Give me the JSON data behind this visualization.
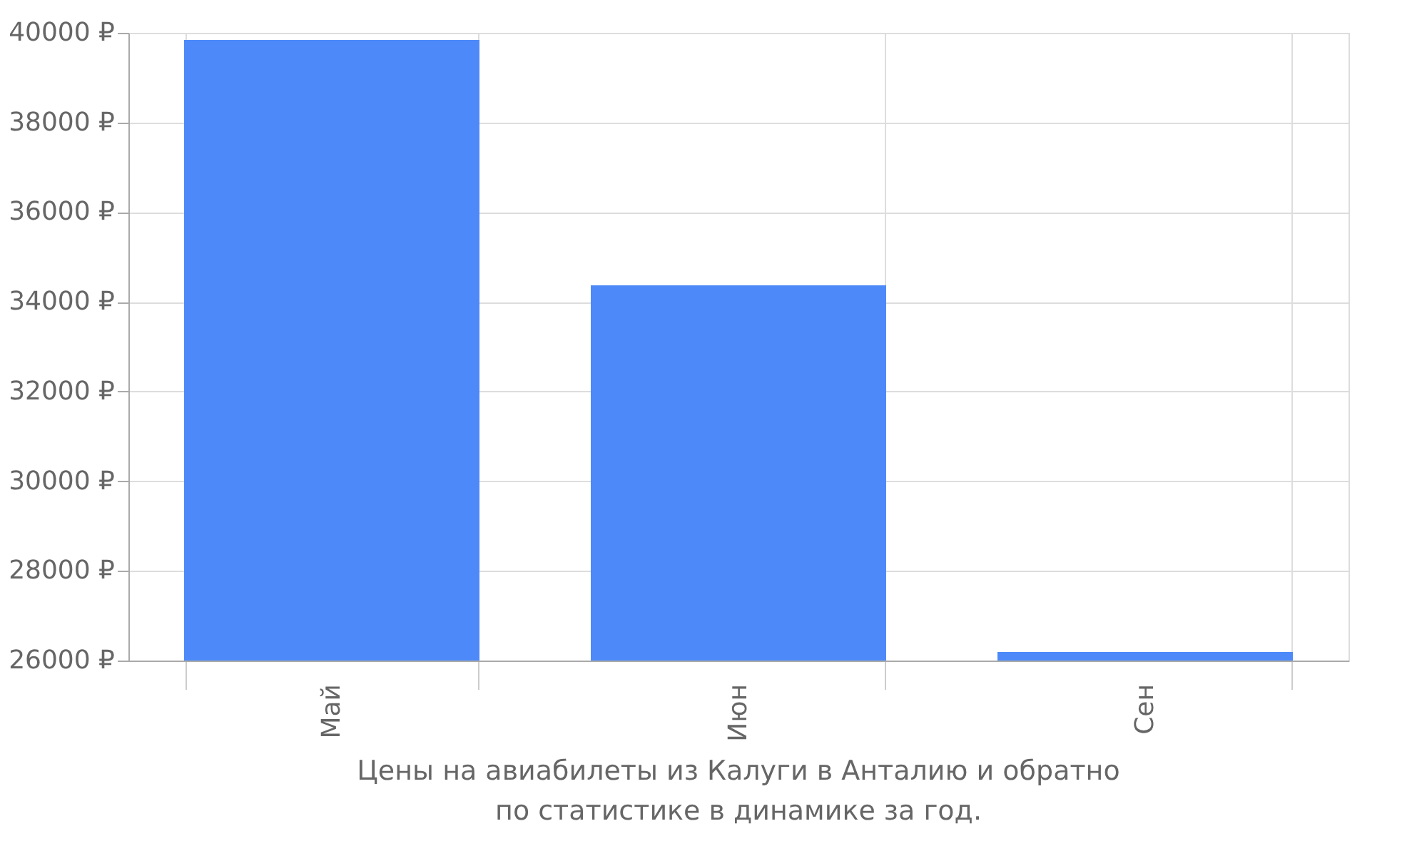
{
  "chart_data": {
    "type": "bar",
    "categories": [
      "Май",
      "Июн",
      "Сен"
    ],
    "values": [
      39840,
      34370,
      26190
    ],
    "color": "#4d89f9",
    "ylim": [
      26000,
      40000
    ],
    "yticks": [
      {
        "value": 26000,
        "label": "26000 ₽"
      },
      {
        "value": 28000,
        "label": "28000 ₽"
      },
      {
        "value": 30000,
        "label": "30000 ₽"
      },
      {
        "value": 32000,
        "label": "32000 ₽"
      },
      {
        "value": 34000,
        "label": "34000 ₽"
      },
      {
        "value": 36000,
        "label": "36000 ₽"
      },
      {
        "value": 38000,
        "label": "38000 ₽"
      },
      {
        "value": 40000,
        "label": "40000 ₽"
      }
    ],
    "grid": true,
    "annotations": [
      "Цены на авиабилеты из Калуги в Анталию и обратно",
      "по статистике в динамике за год."
    ]
  }
}
